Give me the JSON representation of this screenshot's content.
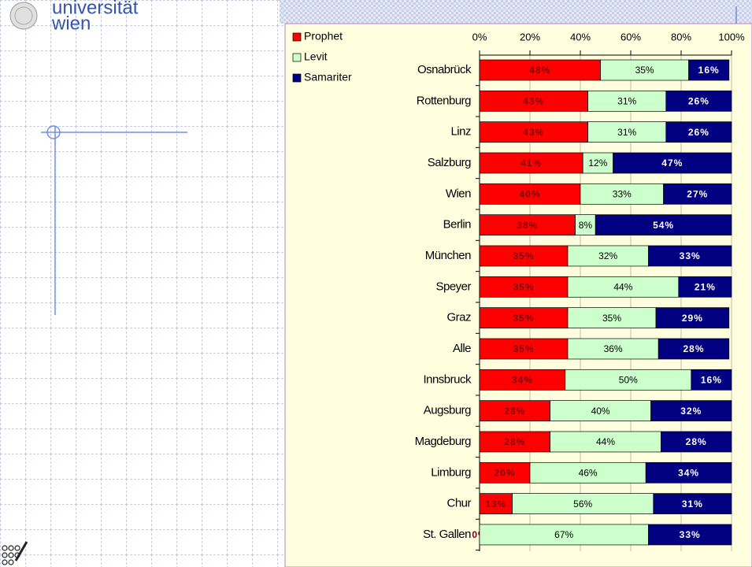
{
  "logo": {
    "line1": "universität",
    "line2": "wien"
  },
  "chart_data": {
    "type": "stacked-bar-horizontal",
    "categories": [
      "Osnabrück",
      "Rottenburg",
      "Linz",
      "Salzburg",
      "Wien",
      "Berlin",
      "München",
      "Speyer",
      "Graz",
      "Alle",
      "Innsbruck",
      "Augsburg",
      "Magdeburg",
      "Limburg",
      "Chur",
      "St. Gallen"
    ],
    "series": [
      {
        "name": "Prophet",
        "color": "#ff0000",
        "label_color": "#800000",
        "values": [
          48,
          43,
          43,
          41,
          40,
          38,
          35,
          35,
          35,
          35,
          34,
          28,
          28,
          20,
          13,
          0
        ],
        "value_labels": [
          "48%",
          "43%",
          "43%",
          "41%",
          "40%",
          "38%",
          "35%",
          "35%",
          "35%",
          "35%",
          "34%",
          "28%",
          "28%",
          "20%",
          "13%",
          "0%"
        ]
      },
      {
        "name": "Levit",
        "color": "#ccffcc",
        "label_color": "#000000",
        "values": [
          35,
          31,
          31,
          12,
          33,
          8,
          32,
          44,
          35,
          36,
          50,
          40,
          44,
          46,
          56,
          67
        ],
        "value_labels": [
          "35%",
          "31%",
          "31%",
          "12%",
          "33%",
          "8%",
          "32%",
          "44%",
          "35%",
          "36%",
          "50%",
          "40%",
          "44%",
          "46%",
          "56%",
          "67%"
        ]
      },
      {
        "name": "Samariter",
        "color": "#000080",
        "label_color": "#ffffff",
        "values": [
          16,
          26,
          26,
          47,
          27,
          54,
          33,
          21,
          29,
          28,
          16,
          32,
          28,
          34,
          31,
          33
        ],
        "value_labels": [
          "16%",
          "26%",
          "26%",
          "47%",
          "27%",
          "54%",
          "33%",
          "21%",
          "29%",
          "28%",
          "16%",
          "32%",
          "28%",
          "34%",
          "31%",
          "33%"
        ]
      }
    ],
    "xlim": [
      0,
      100
    ],
    "xticks": [
      {
        "value": 0,
        "label": "0%"
      },
      {
        "value": 20,
        "label": "20%"
      },
      {
        "value": 40,
        "label": "40%"
      },
      {
        "value": 60,
        "label": "60%"
      },
      {
        "value": 80,
        "label": "80%"
      },
      {
        "value": 100,
        "label": "100%"
      }
    ],
    "grid": true,
    "legend": "top-left"
  }
}
